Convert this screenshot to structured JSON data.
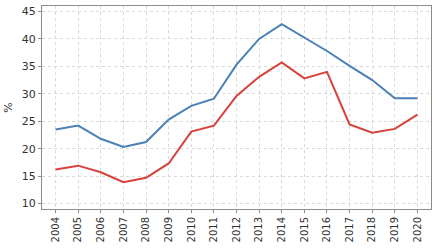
{
  "chart_data": {
    "type": "line",
    "y_label": "%",
    "categories": [
      "2004",
      "2005",
      "2006",
      "2007",
      "2008",
      "2009",
      "2010",
      "2011",
      "2012",
      "2013",
      "2014",
      "2015",
      "2016",
      "2017",
      "2018",
      "2019",
      "2020"
    ],
    "series": [
      {
        "color": "#4a80b4",
        "values": [
          23.5,
          24.2,
          21.8,
          20.3,
          21.2,
          25.3,
          27.8,
          29.1,
          35.3,
          40.0,
          42.7,
          40.3,
          37.8,
          35.1,
          32.5,
          29.2,
          29.2
        ]
      },
      {
        "color": "#d8403a",
        "values": [
          16.2,
          16.9,
          15.7,
          13.9,
          14.7,
          17.3,
          23.1,
          24.2,
          29.6,
          33.1,
          35.7,
          32.8,
          34.0,
          24.4,
          22.9,
          23.6,
          26.2
        ]
      }
    ],
    "ylim": [
      9,
      46
    ],
    "yticks": [
      10,
      15,
      20,
      25,
      30,
      35,
      40,
      45
    ],
    "grid": true
  }
}
